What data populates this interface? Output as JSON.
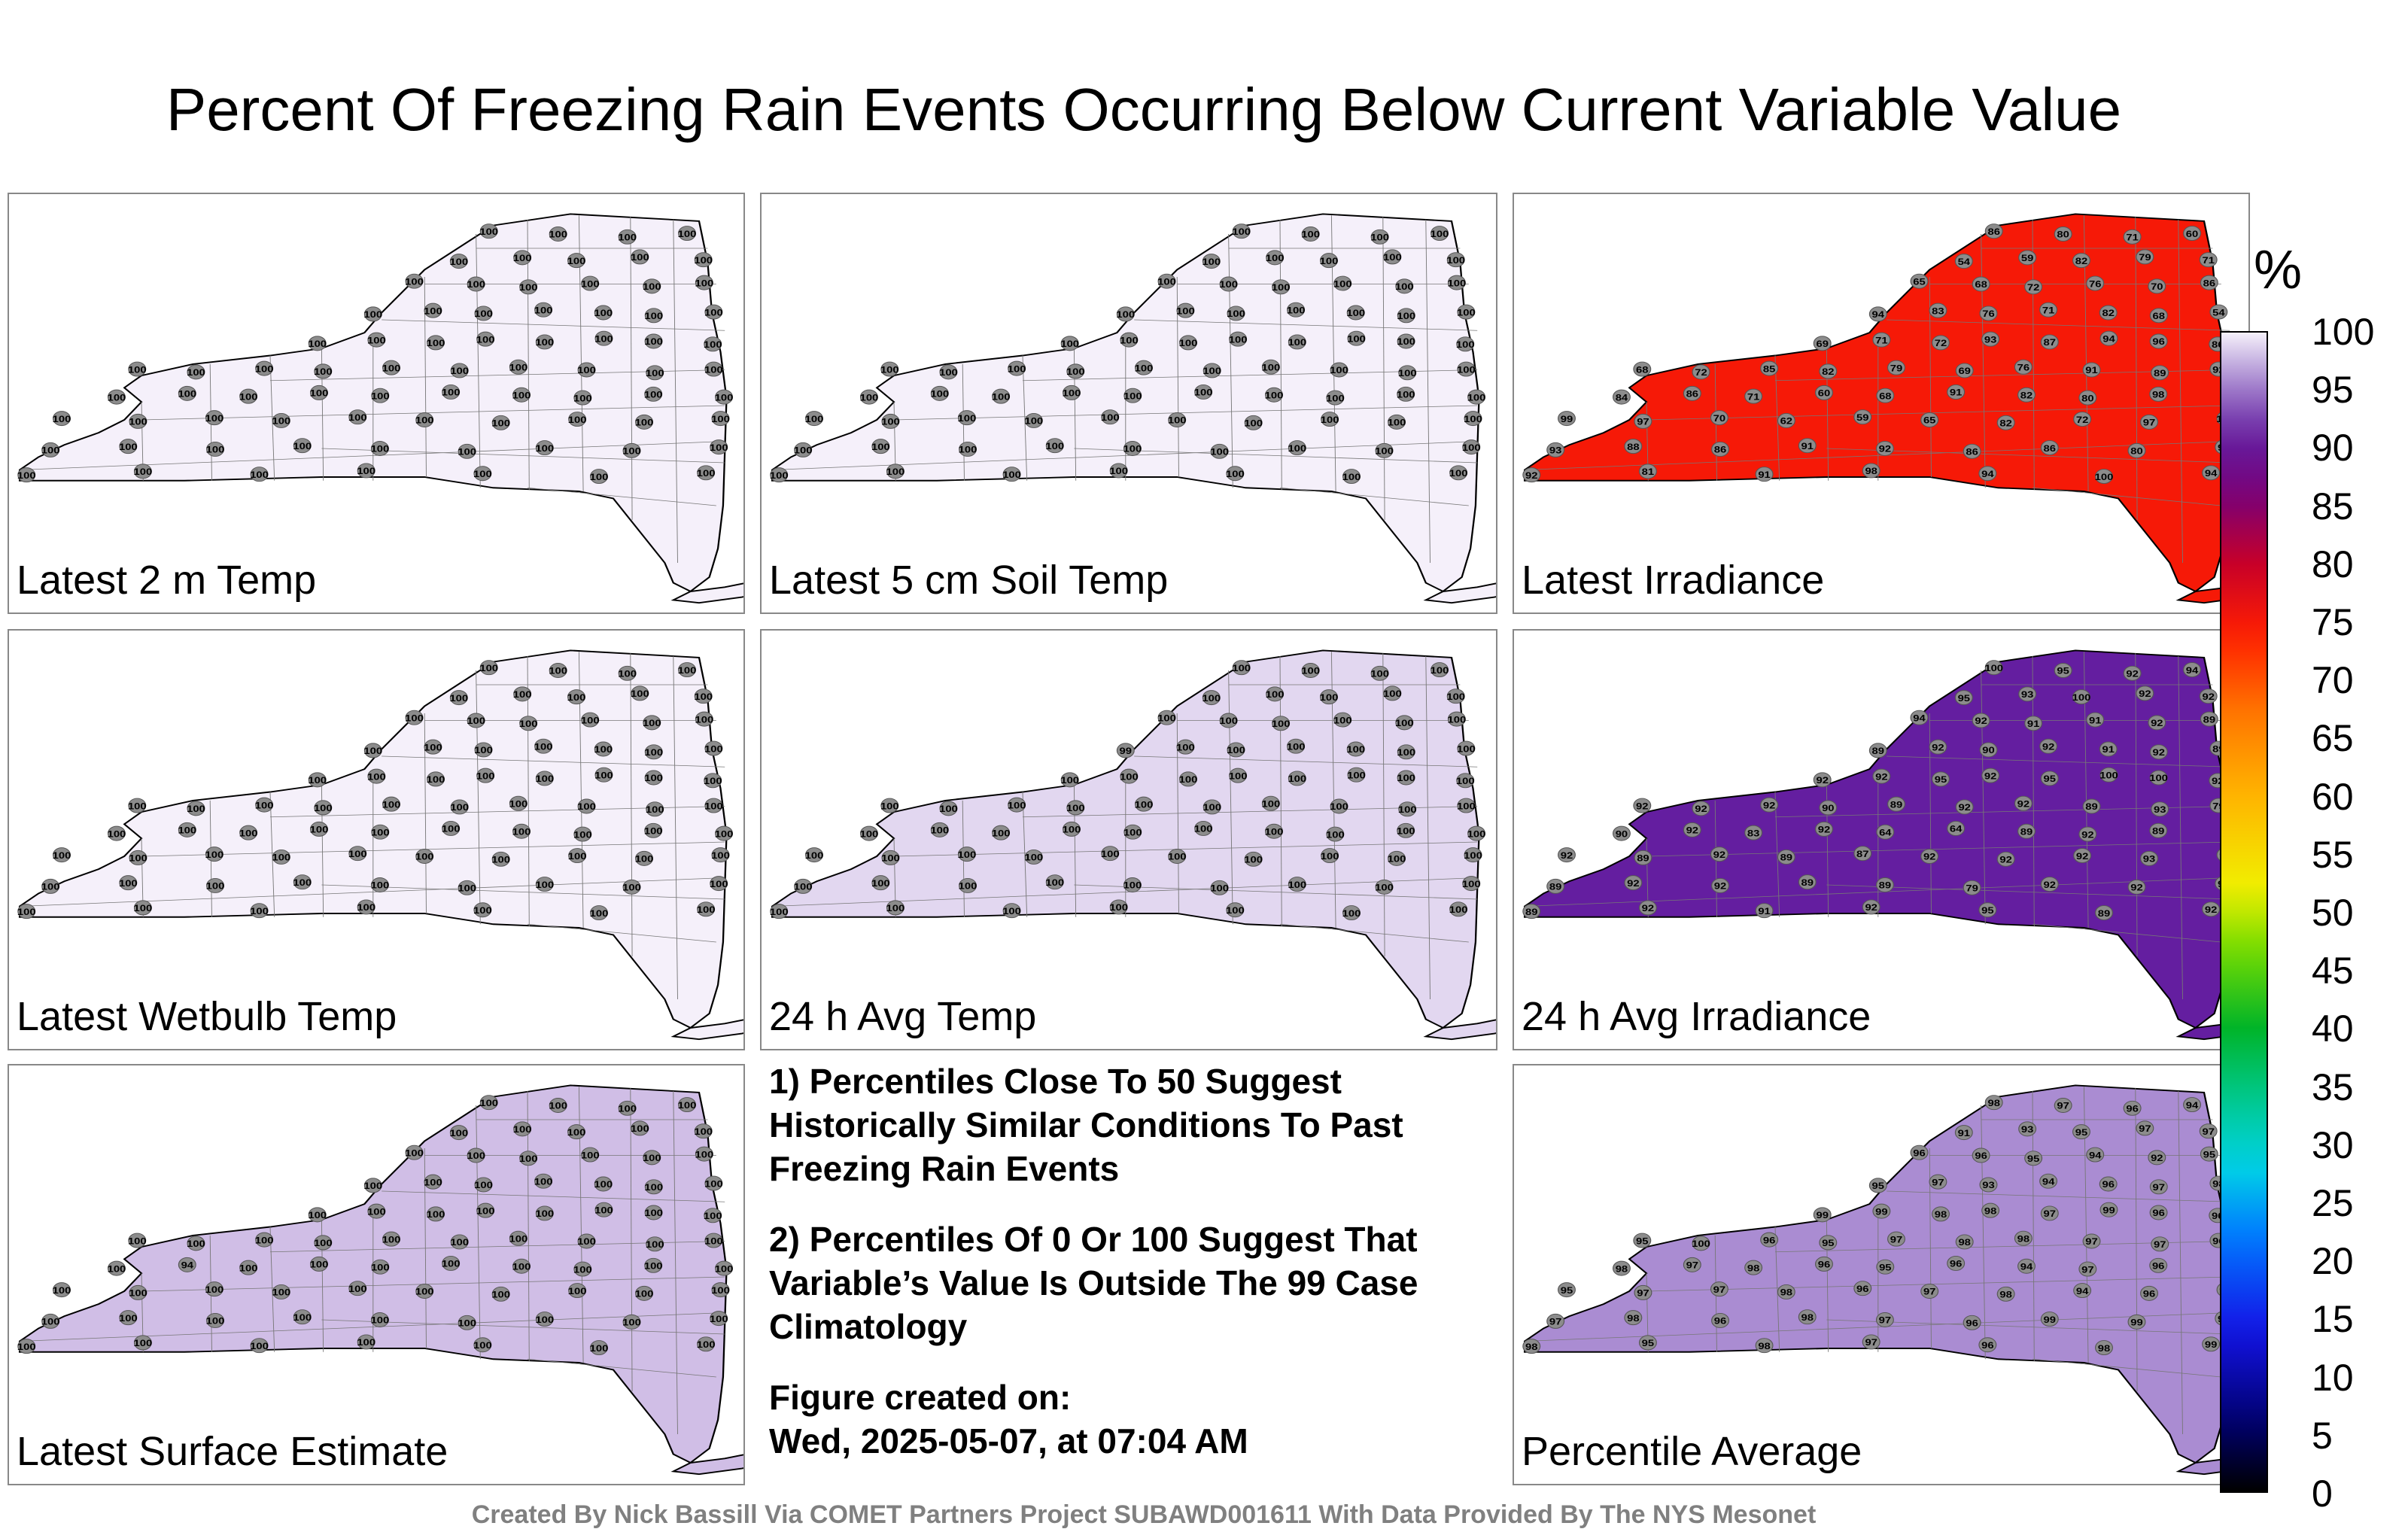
{
  "title": "Percent Of Freezing Rain Events Occurring Below Current Variable Value",
  "colorbar": {
    "unit": "%",
    "ticks": [
      "100",
      "95",
      "90",
      "85",
      "80",
      "75",
      "70",
      "65",
      "60",
      "55",
      "50",
      "45",
      "40",
      "35",
      "30",
      "25",
      "20",
      "15",
      "10",
      "5",
      "0"
    ]
  },
  "panels": [
    {
      "label": "Latest 2 m Temp",
      "fill_level": 100,
      "stations": [
        "100",
        "100",
        "100",
        "100",
        "100",
        "100",
        "100",
        "100",
        "100",
        "100",
        "100",
        "100",
        "100",
        "100",
        "100",
        "100",
        "100",
        "100",
        "100",
        "100",
        "100",
        "100",
        "100",
        "100",
        "100",
        "100",
        "100",
        "100",
        "100",
        "100",
        "100",
        "100",
        "100",
        "100",
        "100",
        "100",
        "100",
        "100",
        "100",
        "100",
        "100",
        "100",
        "100",
        "100",
        "100",
        "100",
        "100",
        "100",
        "100",
        "100",
        "100",
        "100",
        "100",
        "100",
        "100",
        "100",
        "100",
        "100",
        "100",
        "100",
        "100",
        "100",
        "100",
        "100",
        "100",
        "100",
        "100",
        "100",
        "100",
        "100",
        "100",
        "100",
        "100",
        "100",
        "100",
        "100"
      ]
    },
    {
      "label": "Latest 5 cm Soil Temp",
      "fill_level": 100,
      "stations": [
        "100",
        "100",
        "100",
        "100",
        "100",
        "100",
        "100",
        "100",
        "100",
        "100",
        "100",
        "100",
        "100",
        "100",
        "100",
        "100",
        "100",
        "100",
        "100",
        "100",
        "100",
        "100",
        "100",
        "100",
        "100",
        "100",
        "100",
        "100",
        "100",
        "100",
        "100",
        "100",
        "100",
        "100",
        "100",
        "100",
        "100",
        "100",
        "100",
        "100",
        "100",
        "100",
        "100",
        "100",
        "100",
        "100",
        "100",
        "100",
        "100",
        "100",
        "100",
        "100",
        "100",
        "100",
        "100",
        "100",
        "100",
        "100",
        "100",
        "100",
        "100",
        "100",
        "100",
        "100",
        "100",
        "100",
        "100",
        "100",
        "100",
        "100",
        "100",
        "100",
        "100",
        "100",
        "100",
        "100"
      ]
    },
    {
      "label": "Latest Irradiance",
      "fill_level": 75,
      "stations": [
        "86",
        "80",
        "71",
        "60",
        "54",
        "59",
        "82",
        "79",
        "71",
        "65",
        "68",
        "72",
        "76",
        "70",
        "86",
        "94",
        "83",
        "76",
        "71",
        "82",
        "68",
        "54",
        "69",
        "71",
        "72",
        "93",
        "87",
        "94",
        "96",
        "86",
        "68",
        "72",
        "85",
        "82",
        "79",
        "69",
        "76",
        "91",
        "89",
        "92",
        "84",
        "86",
        "71",
        "60",
        "68",
        "91",
        "82",
        "80",
        "98",
        "100",
        "99",
        "97",
        "70",
        "62",
        "59",
        "65",
        "82",
        "72",
        "97",
        "100",
        "93",
        "88",
        "86",
        "91",
        "92",
        "86",
        "86",
        "80",
        "96",
        "92",
        "81",
        "91",
        "98",
        "94",
        "100",
        "94"
      ]
    },
    {
      "label": "Latest Wetbulb Temp",
      "fill_level": 100,
      "stations": [
        "100",
        "100",
        "100",
        "100",
        "100",
        "100",
        "100",
        "100",
        "100",
        "100",
        "100",
        "100",
        "100",
        "100",
        "100",
        "100",
        "100",
        "100",
        "100",
        "100",
        "100",
        "100",
        "100",
        "100",
        "100",
        "100",
        "100",
        "100",
        "100",
        "100",
        "100",
        "100",
        "100",
        "100",
        "100",
        "100",
        "100",
        "100",
        "100",
        "100",
        "100",
        "100",
        "100",
        "100",
        "100",
        "100",
        "100",
        "100",
        "100",
        "100",
        "100",
        "100",
        "100",
        "100",
        "100",
        "100",
        "100",
        "100",
        "100",
        "100",
        "100",
        "100",
        "100",
        "100",
        "100",
        "100",
        "100",
        "100",
        "100",
        "100",
        "100",
        "100",
        "100",
        "100",
        "100",
        "100"
      ]
    },
    {
      "label": "24 h Avg Temp",
      "fill_level": 99,
      "stations": [
        "100",
        "100",
        "100",
        "100",
        "100",
        "100",
        "100",
        "100",
        "100",
        "100",
        "100",
        "100",
        "100",
        "100",
        "100",
        "99",
        "100",
        "100",
        "100",
        "100",
        "100",
        "100",
        "100",
        "100",
        "100",
        "100",
        "100",
        "100",
        "100",
        "100",
        "100",
        "100",
        "100",
        "100",
        "100",
        "100",
        "100",
        "100",
        "100",
        "100",
        "100",
        "100",
        "100",
        "100",
        "100",
        "100",
        "100",
        "100",
        "100",
        "100",
        "100",
        "100",
        "100",
        "100",
        "100",
        "100",
        "100",
        "100",
        "100",
        "100",
        "100",
        "100",
        "100",
        "100",
        "100",
        "100",
        "100",
        "100",
        "100",
        "100",
        "100",
        "100",
        "100",
        "100",
        "100",
        "100"
      ]
    },
    {
      "label": "24 h Avg Irradiance",
      "fill_level": 91,
      "stations": [
        "100",
        "95",
        "92",
        "94",
        "95",
        "93",
        "100",
        "92",
        "92",
        "94",
        "92",
        "91",
        "91",
        "92",
        "89",
        "89",
        "92",
        "90",
        "92",
        "91",
        "92",
        "89",
        "92",
        "92",
        "95",
        "92",
        "95",
        "100",
        "100",
        "92",
        "92",
        "92",
        "92",
        "90",
        "89",
        "92",
        "92",
        "89",
        "93",
        "79",
        "90",
        "92",
        "83",
        "92",
        "64",
        "64",
        "89",
        "92",
        "89",
        "91",
        "92",
        "89",
        "92",
        "89",
        "87",
        "92",
        "92",
        "92",
        "93",
        "92",
        "89",
        "92",
        "92",
        "89",
        "89",
        "79",
        "92",
        "92",
        "91",
        "89",
        "92",
        "91",
        "92",
        "95",
        "89",
        "92"
      ]
    },
    {
      "label": "Latest Surface Estimate",
      "fill_level": 98,
      "stations": [
        "100",
        "100",
        "100",
        "100",
        "100",
        "100",
        "100",
        "100",
        "100",
        "100",
        "100",
        "100",
        "100",
        "100",
        "100",
        "100",
        "100",
        "100",
        "100",
        "100",
        "100",
        "100",
        "100",
        "100",
        "100",
        "100",
        "100",
        "100",
        "100",
        "100",
        "100",
        "100",
        "100",
        "100",
        "100",
        "100",
        "100",
        "100",
        "100",
        "100",
        "100",
        "94",
        "100",
        "100",
        "100",
        "100",
        "100",
        "100",
        "100",
        "100",
        "100",
        "100",
        "100",
        "100",
        "100",
        "100",
        "100",
        "100",
        "100",
        "100",
        "100",
        "100",
        "100",
        "100",
        "100",
        "100",
        "100",
        "100",
        "100",
        "100",
        "100",
        "100",
        "100",
        "100",
        "100",
        "100"
      ]
    },
    {
      "label": "Percentile Average",
      "fill_level": 96,
      "stations": [
        "98",
        "97",
        "96",
        "94",
        "91",
        "93",
        "95",
        "97",
        "97",
        "96",
        "96",
        "95",
        "94",
        "92",
        "95",
        "95",
        "97",
        "93",
        "94",
        "96",
        "97",
        "98",
        "99",
        "99",
        "98",
        "98",
        "97",
        "99",
        "96",
        "96",
        "95",
        "100",
        "96",
        "95",
        "97",
        "98",
        "98",
        "97",
        "97",
        "96",
        "98",
        "97",
        "98",
        "96",
        "95",
        "96",
        "94",
        "97",
        "96",
        "99",
        "95",
        "97",
        "97",
        "98",
        "96",
        "97",
        "98",
        "94",
        "96",
        "97",
        "97",
        "98",
        "96",
        "98",
        "97",
        "96",
        "99",
        "99",
        "99",
        "98",
        "95",
        "98",
        "97",
        "96",
        "98",
        "99"
      ]
    }
  ],
  "notes": [
    "1) Percentiles Close To 50 Suggest Historically Similar Conditions To Past Freezing Rain Events",
    "2) Percentiles Of 0 Or 100 Suggest That Variable’s Value Is Outside The 99 Case Climatology"
  ],
  "created_label": "Figure created on:",
  "created_date": "Wed, 2025-05-07, at 07:04 AM",
  "footer": "Created By Nick Bassill Via COMET Partners Project SUBAWD001611 With Data Provided By The NYS Mesonet"
}
